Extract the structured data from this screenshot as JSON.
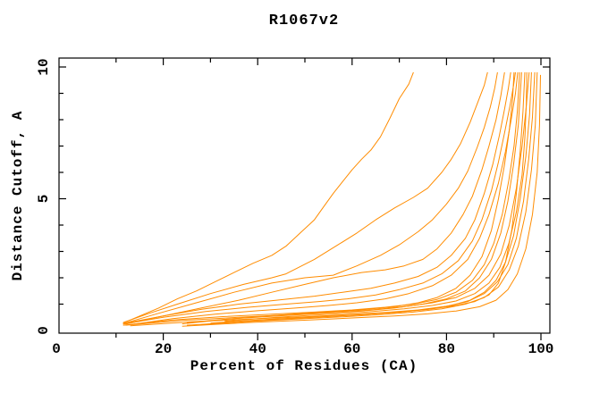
{
  "chart_data": {
    "type": "line",
    "title": "R1067v2",
    "xlabel": "Percent of Residues (CA)",
    "ylabel": "Distance Cutoff, A",
    "xlim": [
      -2,
      102
    ],
    "ylim": [
      -0.1,
      10.35
    ],
    "grid": false,
    "legend": "none",
    "axis_color": "#000000",
    "curve_color": "#ff8c00",
    "x_major_ticks": [
      20,
      40,
      60,
      80,
      100
    ],
    "x_minor_ticks": [
      10,
      30,
      50,
      70,
      90
    ],
    "y_major_ticks": [
      5,
      10
    ],
    "y_minor_ticks": [
      1,
      2,
      3,
      4,
      6,
      7,
      8,
      9
    ],
    "x_tick_labels": [
      {
        "value": 0,
        "label": "0"
      },
      {
        "value": 20,
        "label": "20"
      },
      {
        "value": 40,
        "label": "40"
      },
      {
        "value": 60,
        "label": "60"
      },
      {
        "value": 80,
        "label": "80"
      },
      {
        "value": 100,
        "label": "100"
      }
    ],
    "y_tick_labels": [
      {
        "value": 0,
        "label": "0"
      },
      {
        "value": 5,
        "label": "5"
      },
      {
        "value": 10,
        "label": "10"
      }
    ],
    "series": [
      {
        "points": [
          [
            11.5,
            0.28
          ],
          [
            15,
            0.55
          ],
          [
            19,
            0.85
          ],
          [
            23,
            1.2
          ],
          [
            27,
            1.5
          ],
          [
            31,
            1.85
          ],
          [
            35,
            2.2
          ],
          [
            39,
            2.55
          ],
          [
            43,
            2.85
          ],
          [
            46,
            3.2
          ],
          [
            49,
            3.7
          ],
          [
            52,
            4.2
          ],
          [
            54,
            4.7
          ],
          [
            56,
            5.2
          ],
          [
            58,
            5.65
          ],
          [
            60,
            6.1
          ],
          [
            62,
            6.5
          ],
          [
            64,
            6.85
          ],
          [
            66,
            7.35
          ],
          [
            68,
            8.05
          ],
          [
            70,
            8.8
          ],
          [
            72,
            9.35
          ],
          [
            73,
            9.8
          ]
        ]
      },
      {
        "points": [
          [
            11.5,
            0.3
          ],
          [
            17,
            0.65
          ],
          [
            23,
            1.0
          ],
          [
            30,
            1.4
          ],
          [
            37,
            1.75
          ],
          [
            43,
            2.0
          ],
          [
            46,
            2.15
          ],
          [
            52,
            2.7
          ],
          [
            57,
            3.25
          ],
          [
            61,
            3.7
          ],
          [
            65,
            4.2
          ],
          [
            69,
            4.65
          ],
          [
            73,
            5.05
          ],
          [
            76,
            5.4
          ],
          [
            79,
            6.0
          ],
          [
            81,
            6.5
          ],
          [
            83,
            7.1
          ],
          [
            85,
            7.9
          ],
          [
            86.5,
            8.6
          ],
          [
            88,
            9.3
          ],
          [
            88.7,
            9.8
          ]
        ]
      },
      {
        "points": [
          [
            11.5,
            0.26
          ],
          [
            19,
            0.65
          ],
          [
            27,
            1.05
          ],
          [
            35,
            1.45
          ],
          [
            43,
            1.8
          ],
          [
            50,
            2.0
          ],
          [
            56,
            2.1
          ],
          [
            61,
            2.45
          ],
          [
            66,
            2.85
          ],
          [
            70,
            3.25
          ],
          [
            74,
            3.75
          ],
          [
            77,
            4.2
          ],
          [
            80,
            4.8
          ],
          [
            82.5,
            5.4
          ],
          [
            84.5,
            6.05
          ],
          [
            86.5,
            6.95
          ],
          [
            88,
            7.7
          ],
          [
            89.3,
            8.5
          ],
          [
            90.2,
            9.2
          ],
          [
            90.8,
            9.8
          ]
        ]
      },
      {
        "points": [
          [
            12,
            0.24
          ],
          [
            20,
            0.55
          ],
          [
            28,
            0.85
          ],
          [
            36,
            1.15
          ],
          [
            43,
            1.45
          ],
          [
            50,
            1.75
          ],
          [
            56,
            2.0
          ],
          [
            62,
            2.2
          ],
          [
            67,
            2.3
          ],
          [
            71,
            2.45
          ],
          [
            75,
            2.7
          ],
          [
            78,
            3.1
          ],
          [
            81,
            3.7
          ],
          [
            83.5,
            4.4
          ],
          [
            85.5,
            5.1
          ],
          [
            87.5,
            6.1
          ],
          [
            89,
            7.0
          ],
          [
            90.5,
            8.0
          ],
          [
            91.5,
            8.9
          ],
          [
            92.3,
            9.8
          ]
        ]
      },
      {
        "points": [
          [
            11.5,
            0.26
          ],
          [
            20,
            0.55
          ],
          [
            28,
            0.8
          ],
          [
            36,
            1.0
          ],
          [
            44,
            1.15
          ],
          [
            52,
            1.3
          ],
          [
            58,
            1.45
          ],
          [
            64,
            1.6
          ],
          [
            69,
            1.8
          ],
          [
            74,
            2.05
          ],
          [
            78,
            2.4
          ],
          [
            81,
            2.85
          ],
          [
            84,
            3.5
          ],
          [
            86,
            4.2
          ],
          [
            88,
            5.2
          ],
          [
            89.8,
            6.3
          ],
          [
            91.2,
            7.4
          ],
          [
            92.3,
            8.4
          ],
          [
            93.1,
            9.2
          ],
          [
            93.6,
            9.8
          ]
        ]
      },
      {
        "points": [
          [
            11.5,
            0.24
          ],
          [
            20,
            0.5
          ],
          [
            29,
            0.72
          ],
          [
            38,
            0.88
          ],
          [
            46,
            1.0
          ],
          [
            53,
            1.1
          ],
          [
            59,
            1.2
          ],
          [
            65,
            1.35
          ],
          [
            70,
            1.55
          ],
          [
            75,
            1.8
          ],
          [
            79,
            2.15
          ],
          [
            82.5,
            2.65
          ],
          [
            85.5,
            3.4
          ],
          [
            87.5,
            4.2
          ],
          [
            89.5,
            5.3
          ],
          [
            91,
            6.4
          ],
          [
            92.3,
            7.5
          ],
          [
            93.4,
            8.5
          ],
          [
            94.2,
            9.3
          ],
          [
            94.6,
            9.8
          ]
        ]
      },
      {
        "points": [
          [
            13,
            0.22
          ],
          [
            22,
            0.45
          ],
          [
            31,
            0.62
          ],
          [
            40,
            0.75
          ],
          [
            48,
            0.85
          ],
          [
            55,
            0.95
          ],
          [
            61,
            1.05
          ],
          [
            67,
            1.2
          ],
          [
            72,
            1.4
          ],
          [
            77,
            1.7
          ],
          [
            81,
            2.1
          ],
          [
            84.5,
            2.7
          ],
          [
            87,
            3.5
          ],
          [
            89,
            4.4
          ],
          [
            91,
            5.6
          ],
          [
            92.5,
            6.8
          ],
          [
            93.7,
            8.0
          ],
          [
            94.6,
            9.0
          ],
          [
            95.1,
            9.8
          ]
        ]
      },
      {
        "points": [
          [
            24,
            0.25
          ],
          [
            33,
            0.42
          ],
          [
            42,
            0.55
          ],
          [
            50,
            0.65
          ],
          [
            57,
            0.72
          ],
          [
            63,
            0.8
          ],
          [
            69,
            0.9
          ],
          [
            74,
            1.05
          ],
          [
            78,
            1.25
          ],
          [
            82,
            1.6
          ],
          [
            85,
            2.1
          ],
          [
            87.5,
            2.8
          ],
          [
            89.5,
            3.8
          ],
          [
            91,
            5.0
          ],
          [
            92.3,
            6.3
          ],
          [
            93.3,
            7.6
          ],
          [
            94,
            8.8
          ],
          [
            94.3,
            9.8
          ]
        ]
      },
      {
        "points": [
          [
            11.5,
            0.2
          ],
          [
            22,
            0.4
          ],
          [
            33,
            0.53
          ],
          [
            43,
            0.62
          ],
          [
            52,
            0.7
          ],
          [
            60,
            0.78
          ],
          [
            67,
            0.88
          ],
          [
            73,
            1.0
          ],
          [
            78,
            1.18
          ],
          [
            82,
            1.45
          ],
          [
            85.5,
            1.9
          ],
          [
            88,
            2.5
          ],
          [
            90,
            3.3
          ],
          [
            91.8,
            4.4
          ],
          [
            93.2,
            5.7
          ],
          [
            94.3,
            7.0
          ],
          [
            95,
            8.3
          ],
          [
            95.5,
            9.8
          ]
        ]
      },
      {
        "points": [
          [
            25,
            0.3
          ],
          [
            35,
            0.45
          ],
          [
            45,
            0.56
          ],
          [
            54,
            0.65
          ],
          [
            62,
            0.74
          ],
          [
            69,
            0.85
          ],
          [
            75,
            1.0
          ],
          [
            80,
            1.2
          ],
          [
            84,
            1.5
          ],
          [
            87,
            2.0
          ],
          [
            89.5,
            2.7
          ],
          [
            91.5,
            3.7
          ],
          [
            93,
            4.9
          ],
          [
            94.2,
            6.3
          ],
          [
            95.2,
            7.8
          ],
          [
            95.9,
            9.8
          ]
        ]
      },
      {
        "points": [
          [
            28,
            0.22
          ],
          [
            40,
            0.38
          ],
          [
            52,
            0.5
          ],
          [
            62,
            0.6
          ],
          [
            70,
            0.7
          ],
          [
            77,
            0.82
          ],
          [
            82,
            0.95
          ],
          [
            86,
            1.1
          ],
          [
            89,
            1.35
          ],
          [
            91,
            1.8
          ],
          [
            92.5,
            2.6
          ],
          [
            93.8,
            3.8
          ],
          [
            94.8,
            5.2
          ],
          [
            95.6,
            6.8
          ],
          [
            96.2,
            8.3
          ],
          [
            96.6,
            9.8
          ]
        ]
      },
      {
        "points": [
          [
            33,
            0.35
          ],
          [
            44,
            0.5
          ],
          [
            54,
            0.6
          ],
          [
            63,
            0.7
          ],
          [
            71,
            0.82
          ],
          [
            77,
            0.95
          ],
          [
            82,
            1.12
          ],
          [
            86,
            1.4
          ],
          [
            89,
            1.8
          ],
          [
            91.3,
            2.4
          ],
          [
            93.2,
            3.3
          ],
          [
            94.8,
            4.5
          ],
          [
            96,
            5.9
          ],
          [
            96.6,
            7.3
          ],
          [
            96.9,
            8.6
          ],
          [
            97,
            9.8
          ]
        ]
      },
      {
        "points": [
          [
            12,
            0.2
          ],
          [
            24,
            0.38
          ],
          [
            36,
            0.5
          ],
          [
            47,
            0.6
          ],
          [
            56,
            0.68
          ],
          [
            64,
            0.78
          ],
          [
            71,
            0.9
          ],
          [
            77,
            1.05
          ],
          [
            82,
            1.25
          ],
          [
            86,
            1.6
          ],
          [
            89,
            2.1
          ],
          [
            91.5,
            2.9
          ],
          [
            93.3,
            4.0
          ],
          [
            94.8,
            5.4
          ],
          [
            96,
            7.0
          ],
          [
            96.9,
            8.5
          ],
          [
            97.5,
            9.8
          ]
        ]
      },
      {
        "points": [
          [
            30,
            0.28
          ],
          [
            42,
            0.42
          ],
          [
            53,
            0.52
          ],
          [
            62,
            0.6
          ],
          [
            70,
            0.7
          ],
          [
            76,
            0.8
          ],
          [
            81,
            0.95
          ],
          [
            85,
            1.15
          ],
          [
            88,
            1.45
          ],
          [
            90.5,
            1.9
          ],
          [
            92.5,
            2.6
          ],
          [
            94.2,
            3.6
          ],
          [
            95.6,
            5.0
          ],
          [
            96.8,
            6.6
          ],
          [
            97.6,
            8.2
          ],
          [
            98,
            9.8
          ]
        ]
      },
      {
        "points": [
          [
            13,
            0.18
          ],
          [
            26,
            0.33
          ],
          [
            39,
            0.44
          ],
          [
            50,
            0.52
          ],
          [
            59,
            0.6
          ],
          [
            67,
            0.68
          ],
          [
            74,
            0.78
          ],
          [
            80,
            0.92
          ],
          [
            84.5,
            1.1
          ],
          [
            88,
            1.4
          ],
          [
            90.8,
            1.85
          ],
          [
            93,
            2.5
          ],
          [
            94.8,
            3.5
          ],
          [
            96.3,
            4.9
          ],
          [
            97.4,
            6.5
          ],
          [
            98.2,
            8.1
          ],
          [
            98.7,
            9.8
          ]
        ]
      },
      {
        "points": [
          [
            25,
            0.2
          ],
          [
            37,
            0.33
          ],
          [
            48,
            0.43
          ],
          [
            58,
            0.52
          ],
          [
            66,
            0.6
          ],
          [
            73,
            0.7
          ],
          [
            79,
            0.82
          ],
          [
            84,
            1.0
          ],
          [
            88,
            1.25
          ],
          [
            91,
            1.65
          ],
          [
            93.3,
            2.3
          ],
          [
            95.2,
            3.2
          ],
          [
            96.8,
            4.5
          ],
          [
            98,
            6.1
          ],
          [
            98.8,
            7.8
          ],
          [
            99.2,
            9.8
          ]
        ]
      },
      {
        "points": [
          [
            24,
            0.16
          ],
          [
            38,
            0.3
          ],
          [
            51,
            0.4
          ],
          [
            61,
            0.48
          ],
          [
            69,
            0.55
          ],
          [
            76,
            0.63
          ],
          [
            82,
            0.74
          ],
          [
            87,
            0.9
          ],
          [
            90.5,
            1.15
          ],
          [
            93,
            1.55
          ],
          [
            95,
            2.15
          ],
          [
            96.8,
            3.1
          ],
          [
            98.2,
            4.4
          ],
          [
            99.2,
            6.0
          ],
          [
            99.7,
            7.8
          ],
          [
            99.9,
            9.7
          ]
        ]
      }
    ]
  }
}
